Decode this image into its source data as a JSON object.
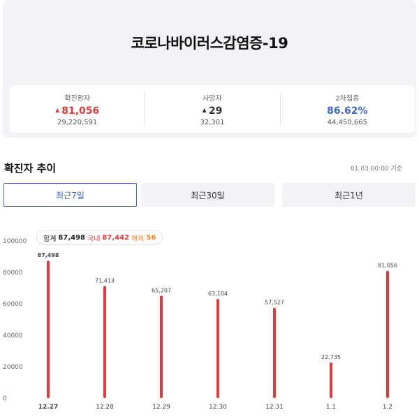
{
  "header": {
    "title": "코로나바이러스감염증-19"
  },
  "stats": [
    {
      "label": "확진환자",
      "value": "81,056",
      "total": "29,220,591",
      "arrow": "▲"
    },
    {
      "label": "사망자",
      "value": "29",
      "total": "32,301",
      "arrow": "▲"
    },
    {
      "label": "2차접종",
      "value": "86.62%",
      "total": "44,450,665"
    }
  ],
  "trend": {
    "title": "확진자 추이",
    "updated": "01.03 00:00 기준",
    "tabs": [
      "최근7일",
      "최근30일",
      "최근1년"
    ],
    "active_tab": 0
  },
  "tooltip": {
    "total_label": "합계",
    "total_value": "87,498",
    "domestic_label": "국내",
    "domestic_value": "87,442",
    "foreign_label": "해외",
    "foreign_value": "56"
  },
  "chart_data": {
    "type": "bar",
    "categories": [
      "12.27",
      "12.28",
      "12.29",
      "12.30",
      "12.31",
      "1.1",
      "1.2"
    ],
    "values": [
      87498,
      71413,
      65207,
      63104,
      57527,
      22735,
      81056
    ],
    "data_labels": [
      "87,498",
      "71,413",
      "65,207",
      "63,104",
      "57,527",
      "22,735",
      "81,056"
    ],
    "ylim": [
      0,
      100000
    ],
    "yticks": [
      0,
      20000,
      40000,
      60000,
      80000,
      100000
    ],
    "highlighted_index": 0,
    "bar_color": "#e0393e",
    "grid": false
  }
}
